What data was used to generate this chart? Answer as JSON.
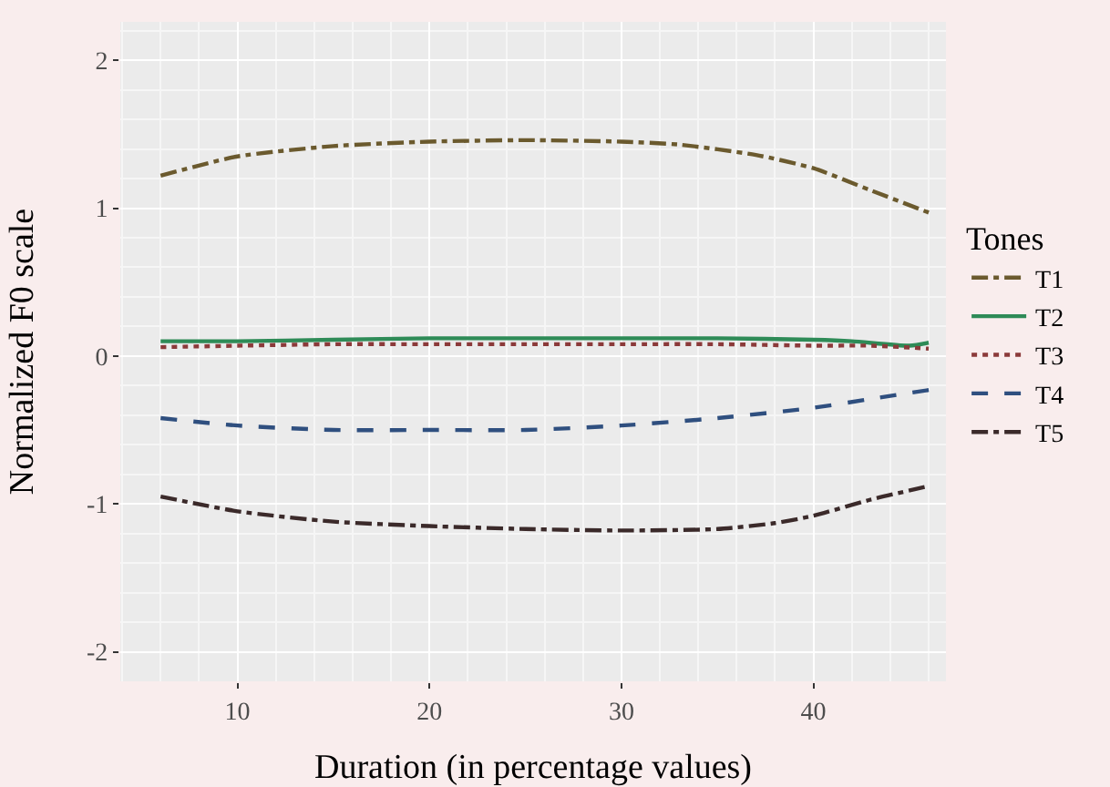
{
  "chart_data": {
    "type": "line",
    "xlabel": "Duration (in percentage values)",
    "ylabel": "Normalized F0 scale",
    "legend_title": "Tones",
    "xlim": [
      3.9,
      46.9
    ],
    "xticks": [
      10,
      20,
      30,
      40
    ],
    "ylim": [
      -2.2,
      2.26
    ],
    "yticks": [
      -2,
      -1,
      0,
      1,
      2
    ],
    "grid": true,
    "legend": "right",
    "series": [
      {
        "name": "T1",
        "color": "#6b5a2e",
        "line_style": "dashdot",
        "x": [
          6,
          10,
          15,
          20,
          25,
          30,
          33,
          37,
          40,
          43,
          46
        ],
        "values": [
          1.22,
          1.35,
          1.42,
          1.45,
          1.46,
          1.45,
          1.43,
          1.36,
          1.27,
          1.12,
          0.97
        ]
      },
      {
        "name": "T2",
        "color": "#2e8b57",
        "line_style": "solid",
        "x": [
          6,
          10,
          15,
          20,
          25,
          30,
          35,
          40,
          42,
          45,
          46
        ],
        "values": [
          0.1,
          0.1,
          0.11,
          0.12,
          0.12,
          0.12,
          0.12,
          0.11,
          0.1,
          0.07,
          0.09
        ]
      },
      {
        "name": "T3",
        "color": "#8b3a3a",
        "line_style": "dotted",
        "x": [
          6,
          10,
          15,
          20,
          25,
          30,
          35,
          40,
          43,
          46
        ],
        "values": [
          0.06,
          0.07,
          0.08,
          0.08,
          0.08,
          0.08,
          0.08,
          0.07,
          0.07,
          0.05
        ]
      },
      {
        "name": "T4",
        "color": "#2f4f7f",
        "line_style": "dashed",
        "x": [
          6,
          10,
          15,
          20,
          25,
          30,
          35,
          40,
          43,
          46
        ],
        "values": [
          -0.42,
          -0.47,
          -0.5,
          -0.5,
          -0.5,
          -0.47,
          -0.42,
          -0.35,
          -0.29,
          -0.23
        ]
      },
      {
        "name": "T5",
        "color": "#3b2a2a",
        "line_style": "dashdot",
        "x": [
          6,
          10,
          15,
          20,
          25,
          30,
          35,
          38,
          40,
          43,
          46
        ],
        "values": [
          -0.95,
          -1.05,
          -1.12,
          -1.15,
          -1.17,
          -1.18,
          -1.17,
          -1.13,
          -1.08,
          -0.97,
          -0.88
        ]
      }
    ]
  }
}
